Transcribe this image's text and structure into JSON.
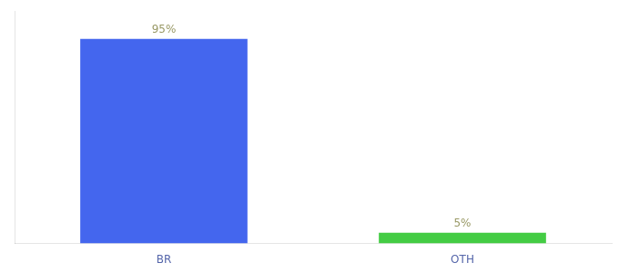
{
  "chart_data": {
    "type": "bar",
    "categories": [
      "BR",
      "OTH"
    ],
    "values": [
      95,
      5
    ],
    "value_labels": [
      "95%",
      "5%"
    ],
    "colors": [
      "#4466ee",
      "#44cc44"
    ],
    "ylim": [
      0,
      108
    ],
    "grid": false,
    "data_labels": true,
    "tick_labels": "x"
  }
}
